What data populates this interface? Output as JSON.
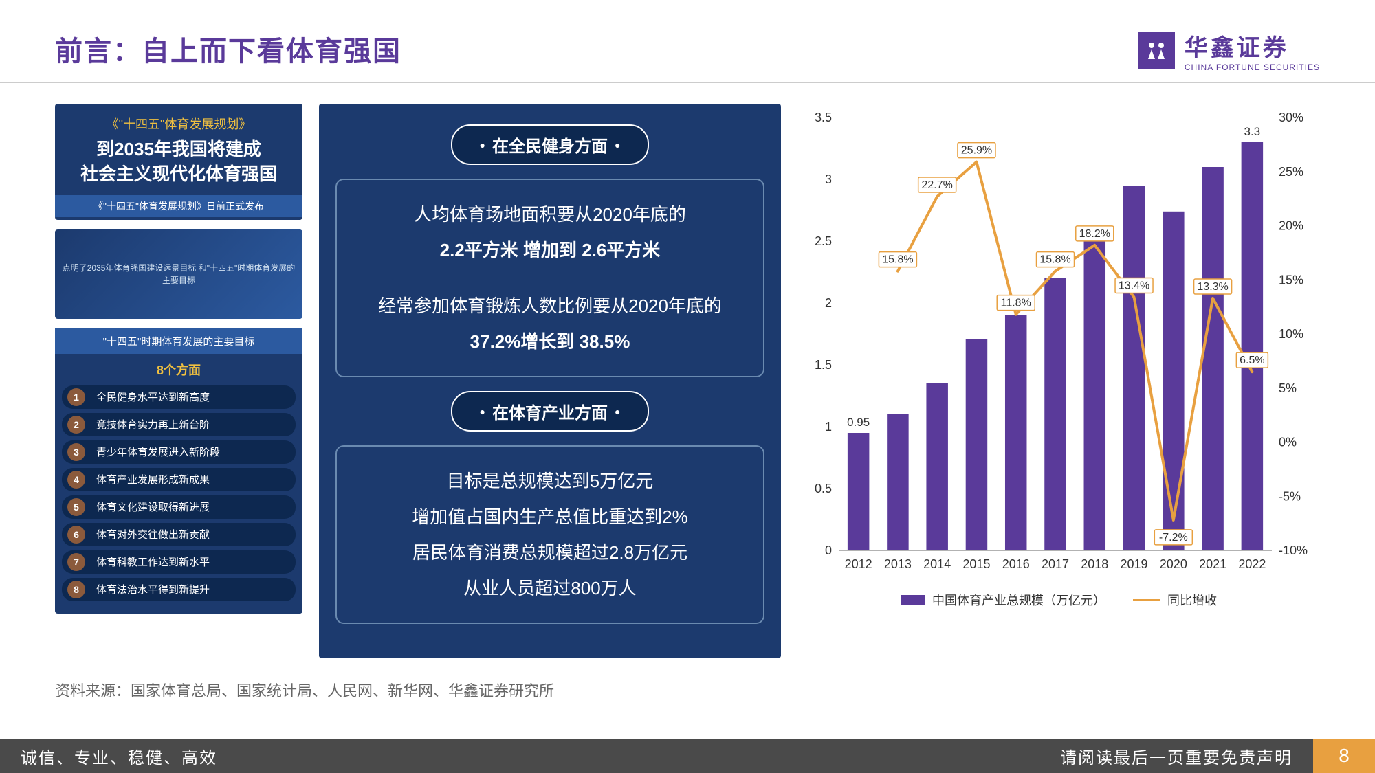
{
  "header": {
    "title": "前言：自上而下看体育强国",
    "brand_cn": "华鑫证券",
    "brand_en": "CHINA FORTUNE SECURITIES"
  },
  "left": {
    "plan_tag": "《\"十四五\"体育发展规划》",
    "plan_line1": "到2035年我国将建成",
    "plan_line2": "社会主义现代化体育强国",
    "sub_bar": "《\"十四五\"体育发展规划》日前正式发布",
    "runner_caption": "点明了2035年体育强国建设远景目标 和\"十四五\"时期体育发展的主要目标",
    "goals_header": "\"十四五\"时期体育发展的主要目标",
    "goals_sub": "8个方面",
    "goals": [
      "全民健身水平达到新高度",
      "竞技体育实力再上新台阶",
      "青少年体育发展进入新阶段",
      "体育产业发展形成新成果",
      "体育文化建设取得新进展",
      "体育对外交往做出新贡献",
      "体育科教工作达到新水平",
      "体育法治水平得到新提升"
    ]
  },
  "mid": {
    "sec1_title": "在全民健身方面",
    "sec1_l1a": "人均体育场地面积要从2020年底的",
    "sec1_l1b": "2.2平方米 增加到 2.6平方米",
    "sec1_l2a": "经常参加体育锻炼人数比例要从2020年底的",
    "sec1_l2b": "37.2%增长到 38.5%",
    "sec2_title": "在体育产业方面",
    "sec2_l1": "目标是总规模达到5万亿元",
    "sec2_l2": "增加值占国内生产总值比重达到2%",
    "sec2_l3": "居民体育消费总规模超过2.8万亿元",
    "sec2_l4": "从业人员超过800万人"
  },
  "chart": {
    "type": "bar+line",
    "years": [
      "2012",
      "2013",
      "2014",
      "2015",
      "2016",
      "2017",
      "2018",
      "2019",
      "2020",
      "2021",
      "2022"
    ],
    "bar_values": [
      0.95,
      1.1,
      1.35,
      1.71,
      1.9,
      2.2,
      2.6,
      2.95,
      2.74,
      3.1,
      3.3
    ],
    "bar_color": "#5a3a9a",
    "bar_top_label": {
      "0": "0.95",
      "10": "3.3"
    },
    "y_left": {
      "min": 0,
      "max": 3.5,
      "step": 0.5
    },
    "line_values": [
      null,
      15.8,
      22.7,
      25.9,
      11.8,
      15.8,
      18.2,
      13.4,
      -7.2,
      13.3,
      6.5
    ],
    "line_color": "#e8a040",
    "y_right": {
      "min": -10,
      "max": 30,
      "step": 5
    },
    "legend_bar": "中国体育产业总规模（万亿元）",
    "legend_line": "同比增收",
    "background": "#ffffff",
    "axis_color": "#666666",
    "label_fontsize": 18
  },
  "source": "资料来源：国家体育总局、国家统计局、人民网、新华网、华鑫证券研究所",
  "footer": {
    "left": "诚信、专业、稳健、高效",
    "disclaimer": "请阅读最后一页重要免责声明",
    "page": "8"
  }
}
